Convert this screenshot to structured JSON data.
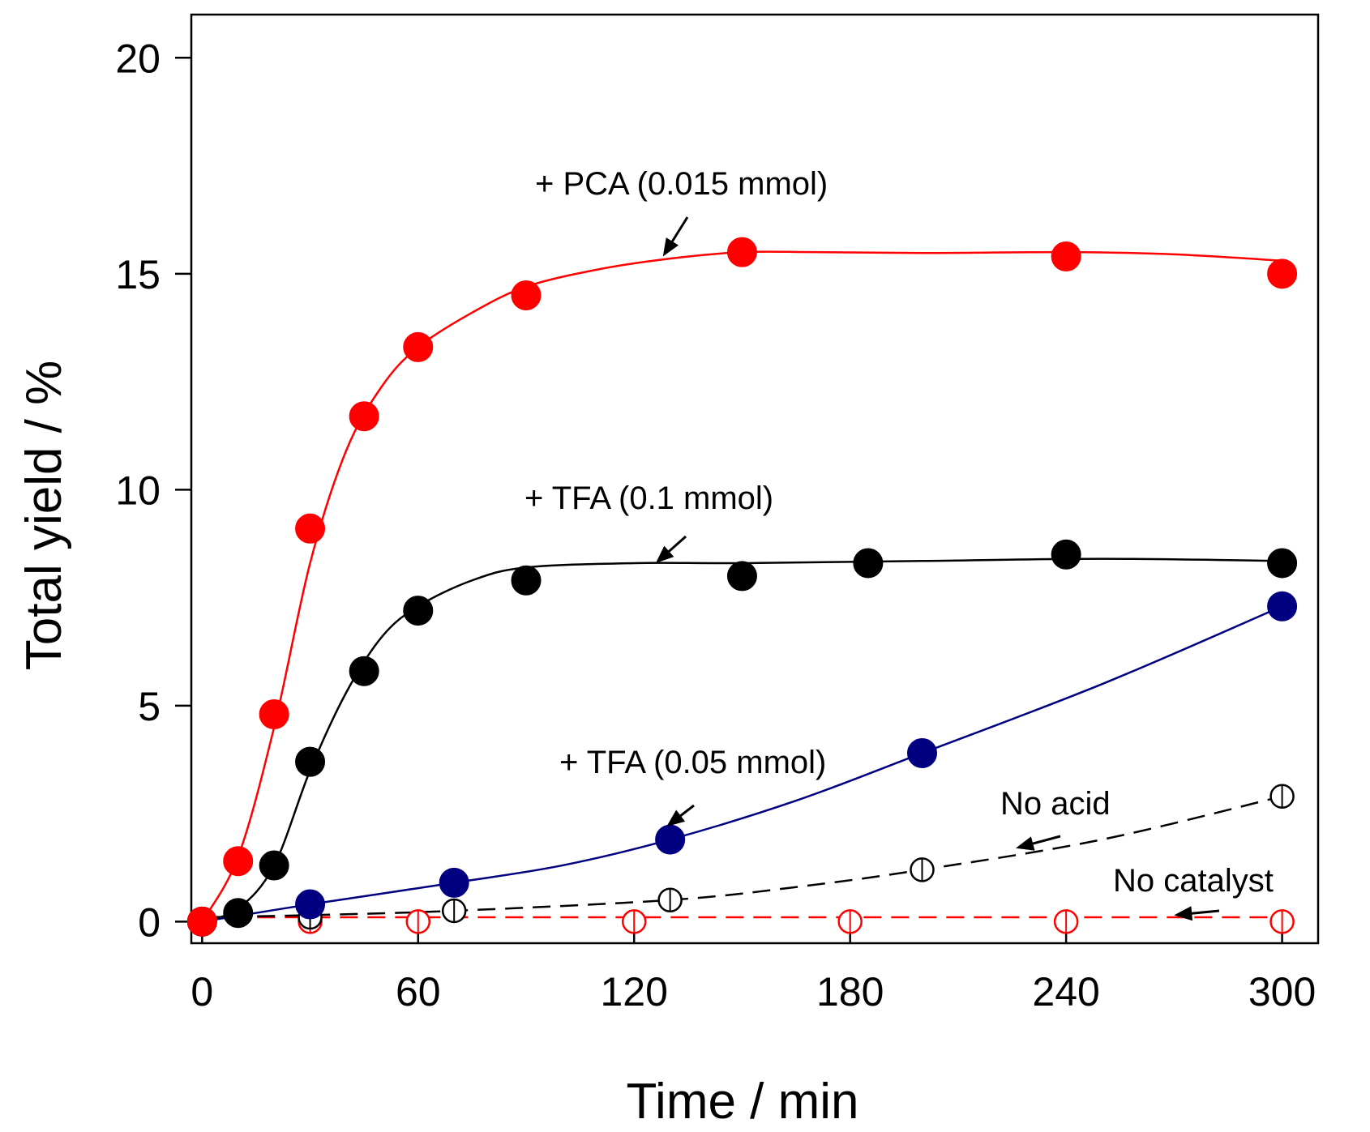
{
  "chart_data": {
    "type": "scatter",
    "title": "",
    "xlabel": "Time / min",
    "ylabel": "Total yield / %",
    "xlim": [
      -3,
      310
    ],
    "ylim": [
      -0.5,
      21
    ],
    "xticks": [
      0,
      60,
      120,
      180,
      240,
      300
    ],
    "yticks": [
      0,
      5,
      10,
      15,
      20
    ],
    "grid": false,
    "legend": "none",
    "series": [
      {
        "name": "+ PCA (0.015 mmol)",
        "color": "#ff0000",
        "marker": "filled-circle",
        "line": "solid",
        "x": [
          0,
          10,
          20,
          30,
          45,
          60,
          90,
          150,
          240,
          300
        ],
        "y": [
          0,
          1.4,
          4.8,
          9.1,
          11.7,
          13.3,
          14.5,
          15.5,
          15.4,
          15.0
        ],
        "fit_x": [
          0,
          10,
          20,
          30,
          40,
          50,
          60,
          75,
          90,
          110,
          130,
          150,
          170,
          200,
          240,
          270,
          300
        ],
        "fit_y": [
          0,
          1.5,
          4.5,
          8.3,
          10.9,
          12.4,
          13.3,
          14.1,
          14.7,
          15.1,
          15.35,
          15.5,
          15.5,
          15.48,
          15.5,
          15.45,
          15.3
        ]
      },
      {
        "name": "+ TFA (0.1 mmol)",
        "color": "#000000",
        "marker": "filled-circle",
        "line": "solid",
        "x": [
          0,
          10,
          20,
          30,
          45,
          60,
          90,
          150,
          185,
          240,
          300
        ],
        "y": [
          0,
          0.2,
          1.3,
          3.7,
          5.8,
          7.2,
          7.9,
          8.0,
          8.3,
          8.5,
          8.3
        ],
        "fit_x": [
          0,
          10,
          20,
          30,
          40,
          50,
          60,
          75,
          90,
          120,
          150,
          200,
          250,
          300
        ],
        "fit_y": [
          0,
          0.3,
          1.3,
          3.5,
          5.3,
          6.6,
          7.3,
          7.9,
          8.2,
          8.3,
          8.3,
          8.35,
          8.4,
          8.35
        ]
      },
      {
        "name": "+ TFA (0.05 mmol)",
        "color": "#000080",
        "marker": "filled-circle",
        "line": "solid",
        "x": [
          0,
          30,
          70,
          130,
          200,
          300
        ],
        "y": [
          0,
          0.4,
          0.9,
          1.9,
          3.9,
          7.3
        ],
        "fit_x": [
          0,
          30,
          70,
          100,
          130,
          165,
          200,
          250,
          300
        ],
        "fit_y": [
          0,
          0.4,
          0.9,
          1.3,
          1.9,
          2.8,
          3.9,
          5.5,
          7.3
        ]
      },
      {
        "name": "No acid",
        "color": "#000000",
        "marker": "open-circle",
        "line": "dashed",
        "x": [
          0,
          30,
          70,
          130,
          200,
          300
        ],
        "y": [
          0,
          0.1,
          0.25,
          0.5,
          1.2,
          2.9
        ],
        "fit_x": [
          0,
          30,
          70,
          130,
          165,
          200,
          250,
          300
        ],
        "fit_y": [
          0.1,
          0.15,
          0.25,
          0.5,
          0.8,
          1.2,
          1.9,
          2.9
        ]
      },
      {
        "name": "No catalyst",
        "color": "#ff0000",
        "marker": "open-circle",
        "line": "dashed",
        "x": [
          0,
          30,
          60,
          120,
          180,
          240,
          300
        ],
        "y": [
          0,
          0,
          0,
          0,
          0,
          0,
          0
        ],
        "fit_x": [
          0,
          300
        ],
        "fit_y": [
          0.1,
          0.1
        ]
      }
    ],
    "annotations": [
      {
        "text": "+ PCA (0.015 mmol)",
        "target": [
          128,
          15.4
        ]
      },
      {
        "text": "+ TFA (0.1 mmol)",
        "target": [
          126,
          8.3
        ]
      },
      {
        "text": "+ TFA (0.05 mmol)",
        "target": [
          129,
          2.2
        ]
      },
      {
        "text": "No acid",
        "target": [
          226,
          1.7
        ]
      },
      {
        "text": "No catalyst",
        "target": [
          270,
          0.15
        ]
      }
    ]
  }
}
